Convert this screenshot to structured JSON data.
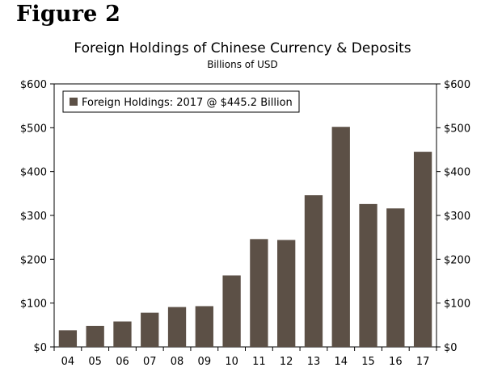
{
  "figure_label": "Figure 2",
  "chart_data": {
    "type": "bar",
    "title": "Foreign Holdings of Chinese Currency & Deposits",
    "subtitle": "Billions of USD",
    "categories": [
      "04",
      "05",
      "06",
      "07",
      "08",
      "09",
      "10",
      "11",
      "12",
      "13",
      "14",
      "15",
      "16",
      "17"
    ],
    "series": [
      {
        "name": "Foreign Holdings: 2017 @ $445.2 Billion",
        "color": "#5c5046",
        "values": [
          38,
          48,
          58,
          78,
          91,
          93,
          163,
          246,
          244,
          346,
          502,
          326,
          316,
          445.2
        ]
      }
    ],
    "yticks": [
      "$0",
      "$100",
      "$200",
      "$300",
      "$400",
      "$500",
      "$600"
    ],
    "ylim": [
      0,
      600
    ],
    "grid": false,
    "legend_position": "top-left"
  }
}
